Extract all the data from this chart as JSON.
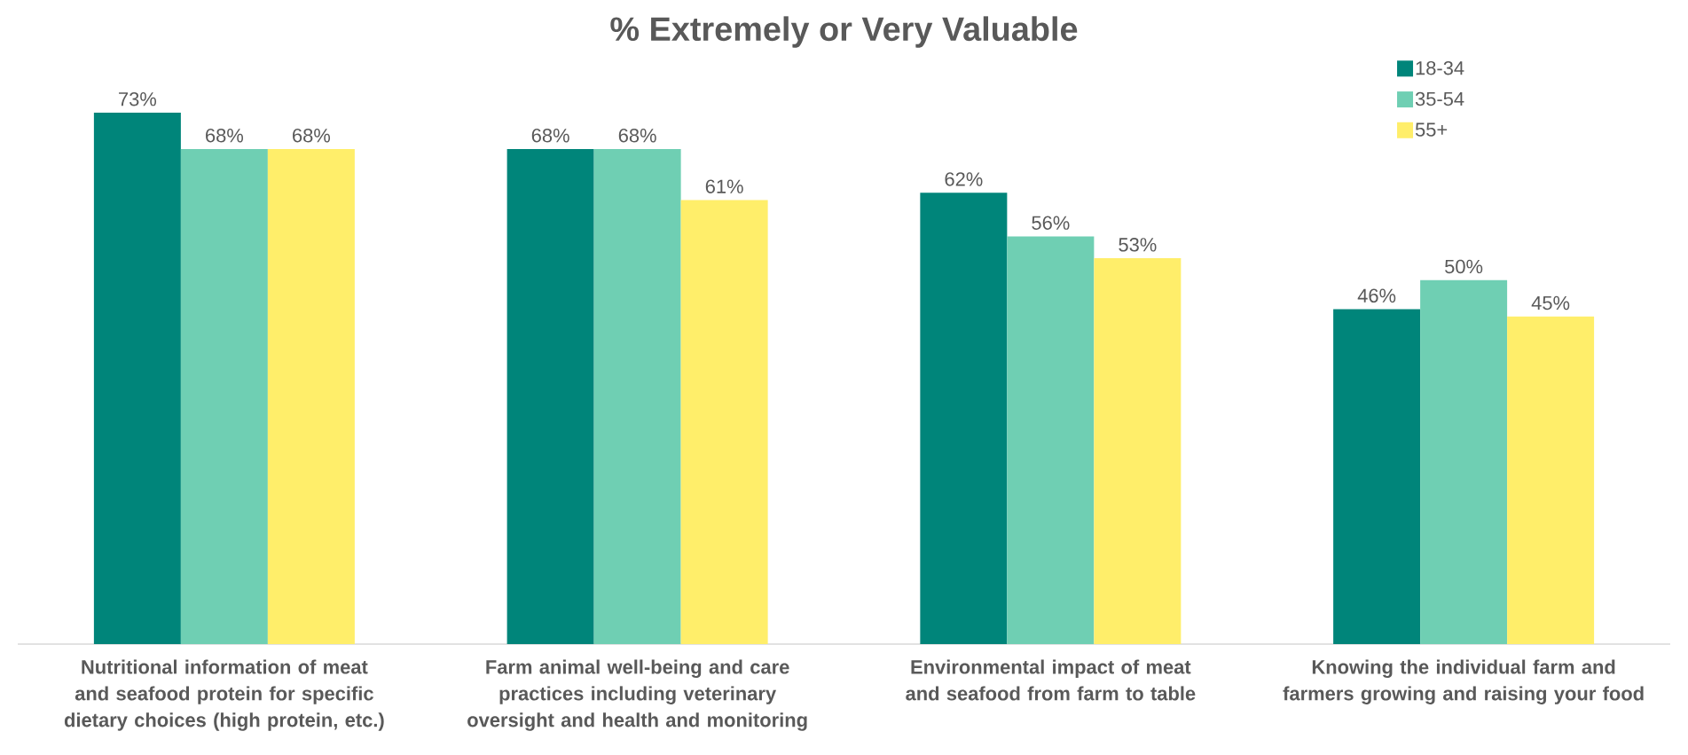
{
  "chart_data": {
    "type": "bar",
    "title": "% Extremely or Very Valuable",
    "categories": [
      "Nutritional information of meat and seafood protein for specific dietary choices (high protein, etc.)",
      "Farm animal well-being and care practices including veterinary oversight and health and monitoring",
      "Environmental impact of meat and seafood from farm to table",
      "Knowing the individual farm and farmers growing and raising your food"
    ],
    "series": [
      {
        "name": "18-34",
        "color": "#00857a",
        "values": [
          73,
          68,
          62,
          46
        ],
        "value_labels": [
          "73%",
          "68%",
          "62%",
          "46%"
        ]
      },
      {
        "name": "35-54",
        "color": "#6fcfb3",
        "values": [
          68,
          68,
          56,
          50
        ],
        "value_labels": [
          "68%",
          "68%",
          "56%",
          "50%"
        ]
      },
      {
        "name": "55+",
        "color": "#ffee6a",
        "values": [
          68,
          61,
          53,
          45
        ],
        "value_labels": [
          "68%",
          "61%",
          "53%",
          "45%"
        ]
      }
    ],
    "legend": "top right",
    "grid": false
  }
}
